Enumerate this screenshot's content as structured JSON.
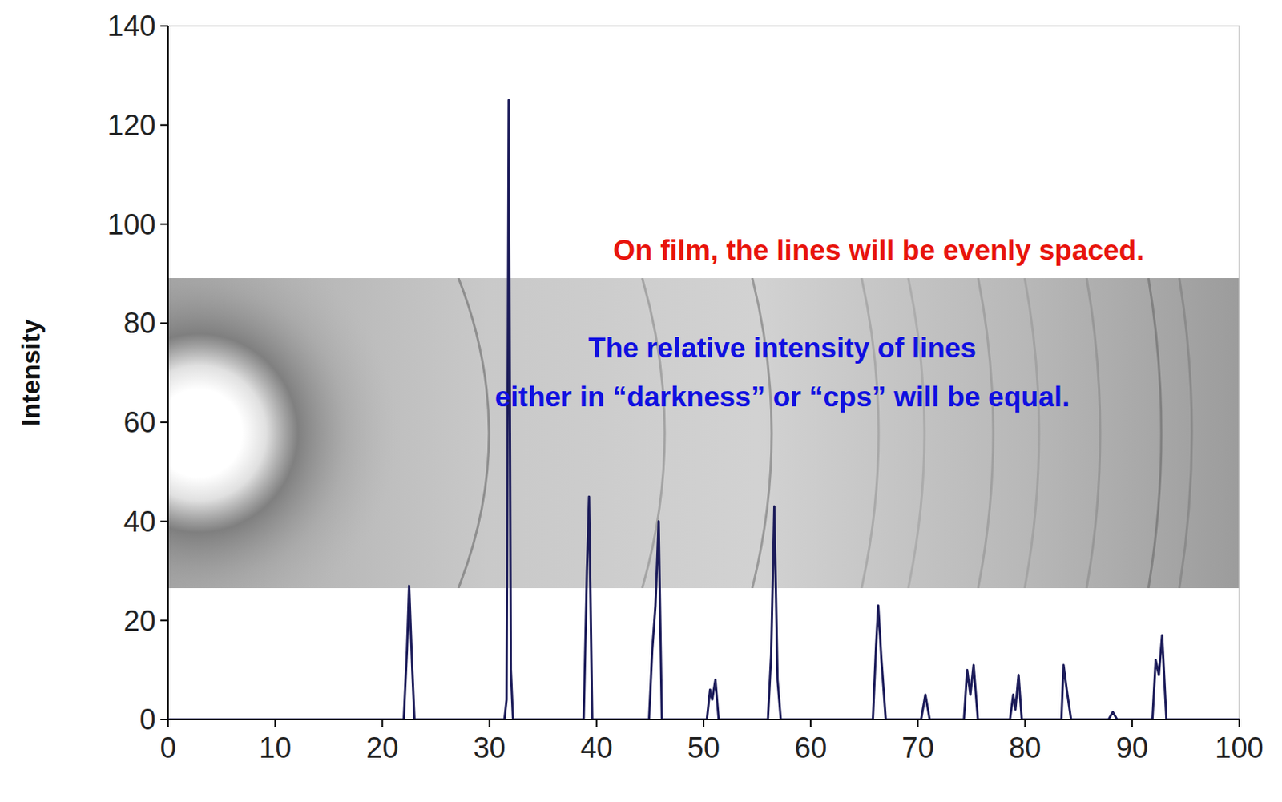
{
  "chart_data": {
    "type": "line",
    "y_label": "Intensity",
    "color": "#1c1c5a",
    "xlim": [
      0,
      100
    ],
    "xticks": [
      0,
      10,
      20,
      30,
      40,
      50,
      60,
      70,
      80,
      90,
      100
    ],
    "ylim": [
      0,
      140
    ],
    "yticks": [
      0,
      20,
      40,
      60,
      80,
      100,
      120,
      140
    ],
    "grid": false,
    "annotations": [
      {
        "text": "On film, the lines will be evenly spaced.",
        "color": "#e8140c"
      },
      {
        "text": "The relative intensity of lines",
        "color": "#1010e0"
      },
      {
        "text": "either in “darkness” or “cps” will be equal.",
        "color": "#1010e0"
      }
    ],
    "x": [
      0,
      22.0,
      22.3,
      22.5,
      22.8,
      23.0,
      31.4,
      31.6,
      31.8,
      32.0,
      32.2,
      38.8,
      39.1,
      39.3,
      39.6,
      44.9,
      45.2,
      45.5,
      45.8,
      46.1,
      50.3,
      50.6,
      50.8,
      51.1,
      51.4,
      56.0,
      56.3,
      56.6,
      56.9,
      57.2,
      65.8,
      66.1,
      66.3,
      66.6,
      67.0,
      70.3,
      70.7,
      71.1,
      74.3,
      74.6,
      74.9,
      75.2,
      75.6,
      78.6,
      78.9,
      79.1,
      79.4,
      79.7,
      83.4,
      83.6,
      83.9,
      84.3,
      87.8,
      88.2,
      88.6,
      91.9,
      92.2,
      92.5,
      92.8,
      93.2,
      100
    ],
    "values": [
      0,
      0,
      14,
      27,
      10,
      0,
      0,
      4,
      125,
      10,
      0,
      0,
      30,
      45,
      0,
      0,
      14,
      23,
      40,
      0,
      0,
      6,
      4,
      8,
      0,
      0,
      13,
      43,
      8,
      0,
      0,
      15,
      23,
      12,
      0,
      0,
      5,
      0,
      0,
      10,
      5,
      11,
      0,
      0,
      5,
      2,
      9,
      0,
      0,
      11,
      6,
      0,
      0,
      1.5,
      0,
      0,
      12,
      9,
      17,
      0,
      0
    ]
  }
}
